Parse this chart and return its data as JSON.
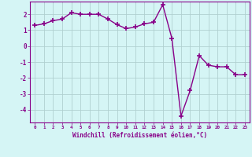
{
  "x": [
    0,
    1,
    2,
    3,
    4,
    5,
    6,
    7,
    8,
    9,
    10,
    11,
    12,
    13,
    14,
    15,
    16,
    17,
    18,
    19,
    20,
    21,
    22,
    23
  ],
  "y": [
    1.3,
    1.4,
    1.6,
    1.7,
    2.1,
    2.0,
    2.0,
    2.0,
    1.7,
    1.35,
    1.1,
    1.2,
    1.4,
    1.5,
    2.6,
    0.5,
    -4.4,
    -2.8,
    -0.6,
    -1.2,
    -1.3,
    -1.3,
    -1.8,
    -1.8
  ],
  "line_color": "#880088",
  "marker": "+",
  "marker_size": 4,
  "marker_lw": 1.2,
  "bg_color": "#d5f5f5",
  "grid_color": "#b0d0d0",
  "xlabel": "Windchill (Refroidissement éolien,°C)",
  "xlabel_color": "#880088",
  "tick_color": "#880088",
  "spine_color": "#880088",
  "ylabel_ticks": [
    -4,
    -3,
    -2,
    -1,
    0,
    1,
    2
  ],
  "xlim": [
    -0.5,
    23.5
  ],
  "ylim": [
    -4.8,
    2.8
  ],
  "linewidth": 1.0
}
